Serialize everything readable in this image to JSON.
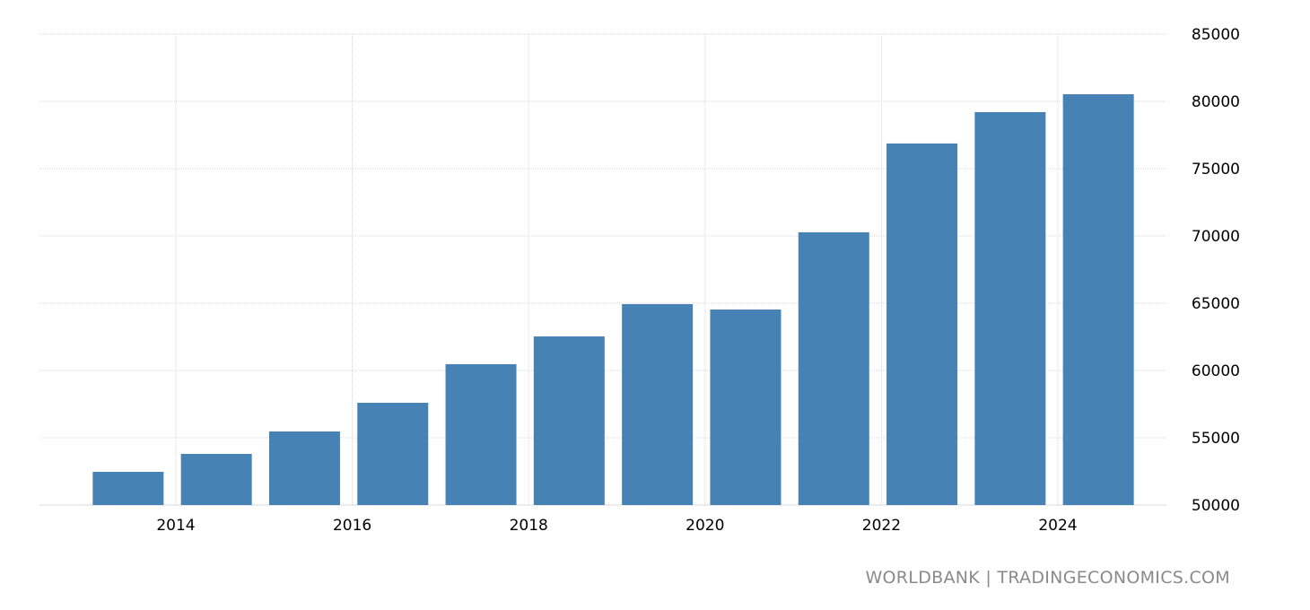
{
  "chart_data": {
    "type": "bar",
    "title": "",
    "xlabel": "",
    "ylabel": "",
    "categories": [
      "2013",
      "2014",
      "2015",
      "2016",
      "2017",
      "2018",
      "2019",
      "2020",
      "2021",
      "2022",
      "2023",
      "2024"
    ],
    "values": [
      52470,
      53800,
      55470,
      57600,
      60470,
      62530,
      64930,
      64530,
      70270,
      76870,
      79200,
      80530
    ],
    "ylim": [
      50000,
      85000
    ],
    "yticks": [
      50000,
      55000,
      60000,
      65000,
      70000,
      75000,
      80000,
      85000
    ],
    "xticks": [
      "2014",
      "2016",
      "2018",
      "2020",
      "2022",
      "2024"
    ],
    "y_axis_position": "right",
    "grid": true,
    "bar_color": "#4682b4",
    "grid_color": "#d9d9d9"
  },
  "watermark": "WORLDBANK | TRADINGECONOMICS.COM"
}
